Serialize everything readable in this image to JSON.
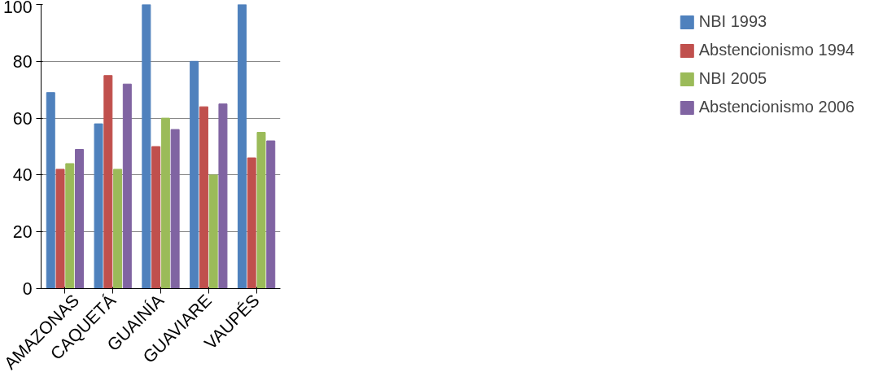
{
  "chart_data": {
    "type": "bar",
    "categories": [
      "AMAZONAS",
      "CAQUETÁ",
      "GUAINÍA",
      "GUAVIARE",
      "VAUPÉS"
    ],
    "series": [
      {
        "name": "NBI 1993",
        "color": "#4f81bd",
        "values": [
          69,
          58,
          100,
          80,
          100
        ]
      },
      {
        "name": "Abstencionismo 1994",
        "color": "#c0504d",
        "values": [
          42,
          75,
          50,
          64,
          46
        ]
      },
      {
        "name": "NBI 2005",
        "color": "#9bbb59",
        "values": [
          44,
          42,
          60,
          40,
          55
        ]
      },
      {
        "name": "Abstencionismo 2006",
        "color": "#8064a2",
        "values": [
          49,
          72,
          56,
          65,
          52
        ]
      }
    ],
    "ylim": [
      0,
      100
    ],
    "yticks": [
      0,
      20,
      40,
      60,
      80,
      100
    ],
    "grid": "y",
    "legend": "right"
  }
}
